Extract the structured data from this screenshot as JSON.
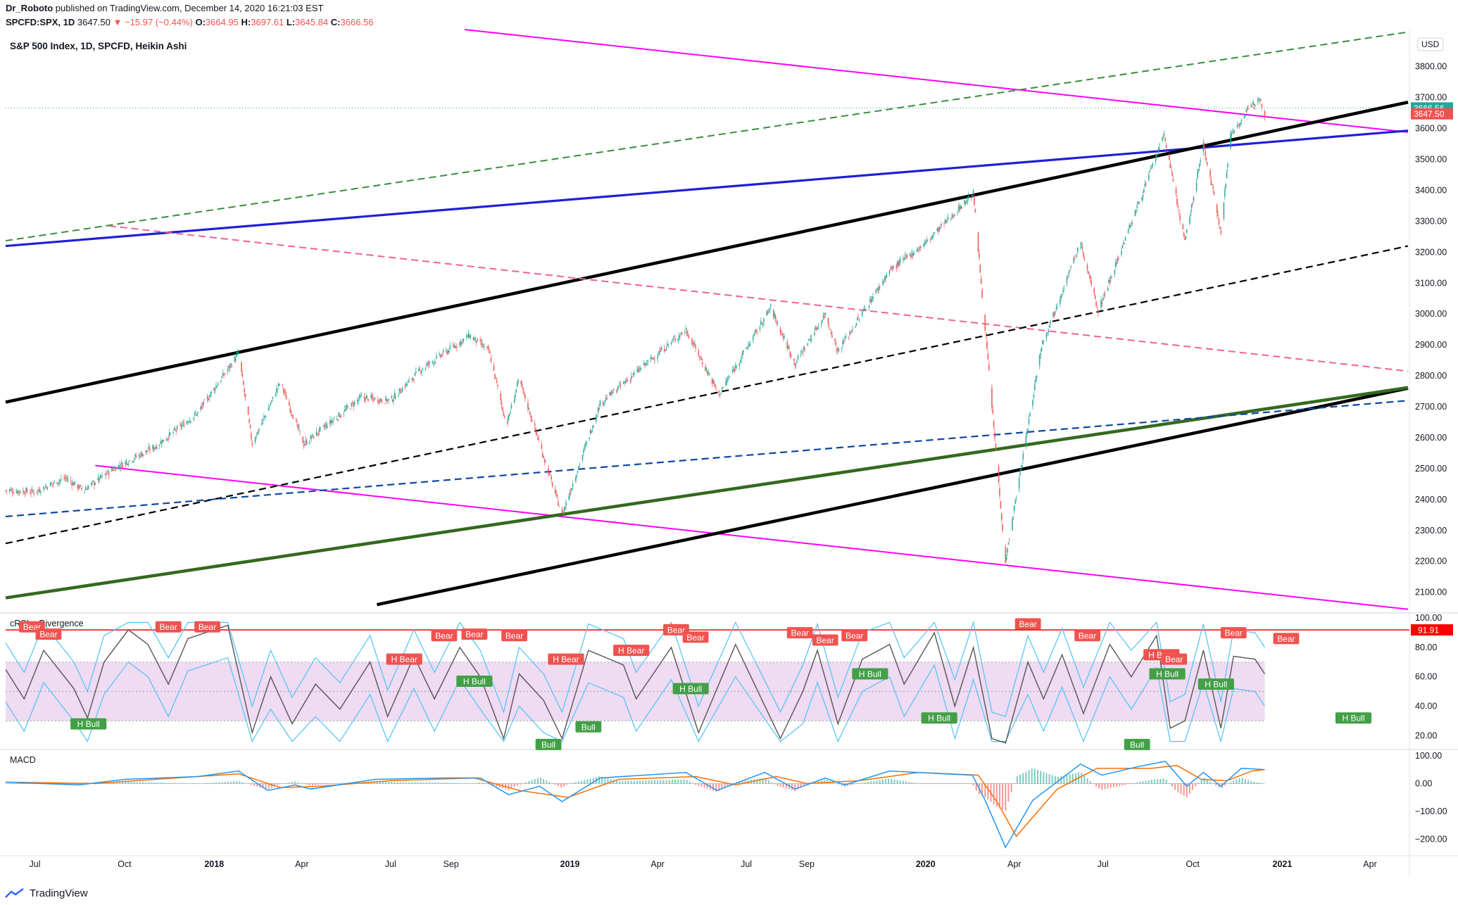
{
  "header": {
    "line1_author": "Dr_Roboto",
    "line1_rest": " published on TradingView.com, December 14, 2020 16:21:03 EST",
    "symbol": "SPCFD:SPX, 1D",
    "last": "3647.50",
    "change": "▼ −15.97 (−0.44%)",
    "o_label": "O:",
    "o": "3664.95",
    "h_label": "H:",
    "h": "3697.61",
    "l_label": "L:",
    "l": "3645.84",
    "c_label": "C:",
    "c": "3666.56"
  },
  "footer": {
    "brand": "TradingView"
  },
  "colors": {
    "up": "#26a69a",
    "down": "#ef5350",
    "magenta": "#ff00ff",
    "blue": "#1f1fd6",
    "black": "#000000",
    "green": "#33691e",
    "dash_green": "#388e3c",
    "dash_pink": "#f06292",
    "dash_navy": "#0d47a1",
    "macd": "#2196f3",
    "signal": "#ff6d00",
    "crsi_line": "#555555",
    "crsi_band": "#4fc3f7",
    "crsi_fill": "#e1bee7"
  },
  "chart_data": [
    {
      "type": "candlestick",
      "title": "S&P 500 Index, 1D, SPCFD, Heikin Ashi",
      "currency": "USD",
      "y_ticks": [
        2100,
        2200,
        2300,
        2400,
        2500,
        2600,
        2700,
        2800,
        2900,
        3000,
        3100,
        3200,
        3300,
        3400,
        3500,
        3600,
        3700,
        3800
      ],
      "y_tick_labels": [
        "2100.00",
        "2200.00",
        "2300.00",
        "2400.00",
        "2500.00",
        "2600.00",
        "2700.00",
        "2800.00",
        "2900.00",
        "3000.00",
        "3100.00",
        "3200.00",
        "3300.00",
        "3400.00",
        "3500.00",
        "3600.00",
        "3700.00",
        "3800.00"
      ],
      "x_tick_labels": [
        "Jul",
        "Oct",
        "2018",
        "Apr",
        "Jul",
        "Sep",
        "2019",
        "Apr",
        "Jul",
        "Sep",
        "2020",
        "Apr",
        "Jul",
        "Oct",
        "2021",
        "Apr"
      ],
      "x_tick_dates": [
        "2017-07-01",
        "2017-10-01",
        "2018-01-01",
        "2018-04-01",
        "2018-07-01",
        "2018-09-01",
        "2019-01-01",
        "2019-04-01",
        "2019-07-01",
        "2019-09-01",
        "2020-01-01",
        "2020-04-01",
        "2020-07-01",
        "2020-10-01",
        "2021-01-01",
        "2021-04-01"
      ],
      "x_range": [
        "2017-06-01",
        "2021-05-10"
      ],
      "y_range": [
        2040,
        3920
      ],
      "price_labels": [
        {
          "text": "3666.56",
          "value": 3666.56,
          "color": "#26a69a"
        },
        {
          "text": "3647.50",
          "value": 3647.5,
          "color": "#ef5350"
        }
      ],
      "price_path": [
        [
          "2017-06-01",
          2430
        ],
        [
          "2017-07-01",
          2425
        ],
        [
          "2017-08-01",
          2470
        ],
        [
          "2017-08-20",
          2430
        ],
        [
          "2017-09-20",
          2500
        ],
        [
          "2017-11-01",
          2570
        ],
        [
          "2017-12-15",
          2680
        ],
        [
          "2018-01-26",
          2872
        ],
        [
          "2018-02-09",
          2580
        ],
        [
          "2018-03-10",
          2780
        ],
        [
          "2018-04-03",
          2580
        ],
        [
          "2018-06-01",
          2730
        ],
        [
          "2018-07-01",
          2720
        ],
        [
          "2018-08-01",
          2820
        ],
        [
          "2018-09-20",
          2930
        ],
        [
          "2018-10-10",
          2880
        ],
        [
          "2018-10-28",
          2640
        ],
        [
          "2018-11-10",
          2790
        ],
        [
          "2018-12-24",
          2350
        ],
        [
          "2019-02-01",
          2710
        ],
        [
          "2019-04-30",
          2950
        ],
        [
          "2019-06-03",
          2740
        ],
        [
          "2019-07-26",
          3020
        ],
        [
          "2019-08-20",
          2840
        ],
        [
          "2019-09-20",
          3000
        ],
        [
          "2019-10-03",
          2880
        ],
        [
          "2019-11-25",
          3140
        ],
        [
          "2020-01-01",
          3230
        ],
        [
          "2020-02-19",
          3390
        ],
        [
          "2020-03-23",
          2200
        ],
        [
          "2020-04-29",
          2900
        ],
        [
          "2020-06-08",
          3230
        ],
        [
          "2020-06-26",
          3010
        ],
        [
          "2020-09-02",
          3580
        ],
        [
          "2020-09-23",
          3230
        ],
        [
          "2020-10-12",
          3550
        ],
        [
          "2020-10-30",
          3270
        ],
        [
          "2020-11-09",
          3580
        ],
        [
          "2020-12-08",
          3705
        ],
        [
          "2020-12-14",
          3650
        ]
      ],
      "trendlines": [
        {
          "style": "magenta",
          "points": [
            [
              "2018-09-15",
              3920
            ],
            [
              "2021-05-10",
              3588
            ]
          ]
        },
        {
          "style": "magenta",
          "points": [
            [
              "2017-09-01",
              2510
            ],
            [
              "2021-05-10",
              2045
            ]
          ]
        },
        {
          "style": "blue",
          "points": [
            [
              "2017-06-01",
              3220
            ],
            [
              "2021-05-10",
              3593
            ]
          ]
        },
        {
          "style": "black",
          "points": [
            [
              "2017-06-01",
              2715
            ],
            [
              "2021-05-10",
              3685
            ]
          ]
        },
        {
          "style": "black",
          "points": [
            [
              "2018-06-17",
              2060
            ],
            [
              "2021-05-10",
              2760
            ]
          ]
        },
        {
          "style": "green",
          "points": [
            [
              "2017-06-01",
              2082
            ],
            [
              "2021-05-10",
              2762
            ]
          ]
        },
        {
          "style": "dash_green",
          "points": [
            [
              "2017-06-01",
              3237
            ],
            [
              "2021-05-10",
              3912
            ]
          ]
        },
        {
          "style": "dash_pink",
          "points": [
            [
              "2017-09-15",
              3285
            ],
            [
              "2021-05-10",
              2815
            ]
          ]
        },
        {
          "style": "dash_black",
          "points": [
            [
              "2017-06-01",
              2258
            ],
            [
              "2021-05-10",
              3220
            ]
          ]
        },
        {
          "style": "dash_navy",
          "points": [
            [
              "2017-06-01",
              2345
            ],
            [
              "2021-05-10",
              2720
            ]
          ]
        }
      ]
    },
    {
      "type": "line",
      "title": "cRSI + Divergence",
      "y_ticks": [
        20,
        40,
        60,
        80,
        100
      ],
      "y_tick_labels": [
        "20.00",
        "40.00",
        "60.00",
        "80.00",
        "100.00"
      ],
      "y_range": [
        12,
        102
      ],
      "ref_line": {
        "value": 91.91,
        "text": "91.91"
      },
      "crsi_path": [
        [
          "2017-06-01",
          65
        ],
        [
          "2017-06-20",
          45
        ],
        [
          "2017-07-10",
          78
        ],
        [
          "2017-08-10",
          52
        ],
        [
          "2017-08-24",
          32
        ],
        [
          "2017-09-10",
          70
        ],
        [
          "2017-10-05",
          92
        ],
        [
          "2017-10-25",
          82
        ],
        [
          "2017-11-15",
          55
        ],
        [
          "2017-12-05",
          86
        ],
        [
          "2018-01-15",
          95
        ],
        [
          "2018-02-09",
          22
        ],
        [
          "2018-02-28",
          60
        ],
        [
          "2018-03-22",
          28
        ],
        [
          "2018-04-15",
          55
        ],
        [
          "2018-05-10",
          38
        ],
        [
          "2018-06-10",
          70
        ],
        [
          "2018-06-28",
          33
        ],
        [
          "2018-07-25",
          74
        ],
        [
          "2018-08-15",
          45
        ],
        [
          "2018-09-10",
          80
        ],
        [
          "2018-10-01",
          60
        ],
        [
          "2018-10-25",
          18
        ],
        [
          "2018-11-10",
          62
        ],
        [
          "2018-12-05",
          44
        ],
        [
          "2018-12-24",
          18
        ],
        [
          "2019-01-20",
          78
        ],
        [
          "2019-02-25",
          68
        ],
        [
          "2019-03-10",
          45
        ],
        [
          "2019-04-15",
          80
        ],
        [
          "2019-05-13",
          22
        ],
        [
          "2019-06-20",
          82
        ],
        [
          "2019-08-05",
          18
        ],
        [
          "2019-08-28",
          50
        ],
        [
          "2019-09-12",
          78
        ],
        [
          "2019-10-03",
          28
        ],
        [
          "2019-10-28",
          72
        ],
        [
          "2019-11-25",
          82
        ],
        [
          "2019-12-10",
          55
        ],
        [
          "2020-01-10",
          90
        ],
        [
          "2020-01-31",
          40
        ],
        [
          "2020-02-19",
          80
        ],
        [
          "2020-03-09",
          18
        ],
        [
          "2020-03-23",
          15
        ],
        [
          "2020-04-15",
          70
        ],
        [
          "2020-05-01",
          45
        ],
        [
          "2020-05-20",
          75
        ],
        [
          "2020-06-11",
          35
        ],
        [
          "2020-07-08",
          82
        ],
        [
          "2020-07-30",
          60
        ],
        [
          "2020-08-25",
          88
        ],
        [
          "2020-09-08",
          25
        ],
        [
          "2020-09-23",
          30
        ],
        [
          "2020-10-12",
          78
        ],
        [
          "2020-10-30",
          25
        ],
        [
          "2020-11-12",
          74
        ],
        [
          "2020-12-04",
          72
        ],
        [
          "2020-12-14",
          62
        ]
      ],
      "labels": [
        {
          "text": "Bear",
          "kind": "bear",
          "date": "2017-06-28",
          "value": 94
        },
        {
          "text": "Bear",
          "kind": "bear",
          "date": "2017-07-15",
          "value": 89
        },
        {
          "text": "Bear",
          "kind": "bear",
          "date": "2017-11-15",
          "value": 94
        },
        {
          "text": "Bear",
          "kind": "bear",
          "date": "2017-12-25",
          "value": 94
        },
        {
          "text": "H Bull",
          "kind": "bull",
          "date": "2017-08-25",
          "value": 28
        },
        {
          "text": "H Bear",
          "kind": "bear",
          "date": "2018-07-15",
          "value": 72
        },
        {
          "text": "Bear",
          "kind": "bear",
          "date": "2018-08-25",
          "value": 88
        },
        {
          "text": "Bear",
          "kind": "bear",
          "date": "2018-09-25",
          "value": 89
        },
        {
          "text": "H Bull",
          "kind": "bull",
          "date": "2018-09-25",
          "value": 57
        },
        {
          "text": "Bear",
          "kind": "bear",
          "date": "2018-11-05",
          "value": 88
        },
        {
          "text": "Bull",
          "kind": "bull",
          "date": "2018-12-10",
          "value": 14
        },
        {
          "text": "H Bear",
          "kind": "bear",
          "date": "2018-12-28",
          "value": 72
        },
        {
          "text": "Bull",
          "kind": "bull",
          "date": "2019-01-20",
          "value": 26
        },
        {
          "text": "H Bear",
          "kind": "bear",
          "date": "2019-03-05",
          "value": 78
        },
        {
          "text": "Bear",
          "kind": "bear",
          "date": "2019-04-20",
          "value": 92
        },
        {
          "text": "Bear",
          "kind": "bear",
          "date": "2019-05-10",
          "value": 87
        },
        {
          "text": "H Bull",
          "kind": "bull",
          "date": "2019-05-05",
          "value": 52
        },
        {
          "text": "Bear",
          "kind": "bear",
          "date": "2019-08-25",
          "value": 90
        },
        {
          "text": "Bear",
          "kind": "bear",
          "date": "2019-09-20",
          "value": 85
        },
        {
          "text": "Bear",
          "kind": "bear",
          "date": "2019-10-20",
          "value": 88
        },
        {
          "text": "H Bull",
          "kind": "bull",
          "date": "2019-11-05",
          "value": 62
        },
        {
          "text": "H Bull",
          "kind": "bull",
          "date": "2020-01-15",
          "value": 32
        },
        {
          "text": "Bear",
          "kind": "bear",
          "date": "2020-04-15",
          "value": 96
        },
        {
          "text": "Bear",
          "kind": "bear",
          "date": "2020-06-15",
          "value": 88
        },
        {
          "text": "Bull",
          "kind": "bull",
          "date": "2020-08-05",
          "value": 14
        },
        {
          "text": "H Bear",
          "kind": "bear",
          "date": "2020-08-30",
          "value": 75
        },
        {
          "text": "H Bull",
          "kind": "bull",
          "date": "2020-09-05",
          "value": 62
        },
        {
          "text": "Bear",
          "kind": "bear",
          "date": "2020-09-12",
          "value": 72
        },
        {
          "text": "H Bull",
          "kind": "bull",
          "date": "2020-10-25",
          "value": 55
        },
        {
          "text": "Bear",
          "kind": "bear",
          "date": "2020-11-12",
          "value": 90
        },
        {
          "text": "Bear",
          "kind": "bear",
          "date": "2021-01-05",
          "value": 86
        },
        {
          "text": "H Bull",
          "kind": "bull",
          "date": "2021-03-15",
          "value": 32
        }
      ]
    },
    {
      "type": "line",
      "title": "MACD",
      "y_ticks": [
        -200,
        -100,
        0,
        100
      ],
      "y_tick_labels": [
        "−200.00",
        "−100.00",
        "0.00",
        "100.00"
      ],
      "y_range": [
        -255,
        115
      ],
      "macd_path": [
        [
          "2017-06-01",
          5
        ],
        [
          "2017-08-15",
          -5
        ],
        [
          "2017-10-01",
          15
        ],
        [
          "2017-12-15",
          25
        ],
        [
          "2018-01-26",
          45
        ],
        [
          "2018-02-25",
          -25
        ],
        [
          "2018-03-25",
          -5
        ],
        [
          "2018-04-10",
          -20
        ],
        [
          "2018-06-15",
          15
        ],
        [
          "2018-08-25",
          20
        ],
        [
          "2018-10-01",
          20
        ],
        [
          "2018-10-30",
          -40
        ],
        [
          "2018-12-01",
          -10
        ],
        [
          "2018-12-24",
          -65
        ],
        [
          "2019-02-01",
          20
        ],
        [
          "2019-04-30",
          40
        ],
        [
          "2019-06-01",
          -25
        ],
        [
          "2019-07-20",
          40
        ],
        [
          "2019-08-20",
          -20
        ],
        [
          "2019-09-20",
          20
        ],
        [
          "2019-10-10",
          -5
        ],
        [
          "2019-11-25",
          45
        ],
        [
          "2020-01-20",
          35
        ],
        [
          "2020-02-18",
          30
        ],
        [
          "2020-03-02",
          -60
        ],
        [
          "2020-03-23",
          -230
        ],
        [
          "2020-04-20",
          -60
        ],
        [
          "2020-06-08",
          70
        ],
        [
          "2020-06-30",
          30
        ],
        [
          "2020-08-05",
          60
        ],
        [
          "2020-09-03",
          80
        ],
        [
          "2020-09-25",
          -10
        ],
        [
          "2020-10-12",
          40
        ],
        [
          "2020-10-30",
          -10
        ],
        [
          "2020-11-20",
          55
        ],
        [
          "2020-12-14",
          50
        ]
      ],
      "signal_path": [
        [
          "2017-06-01",
          5
        ],
        [
          "2017-09-01",
          0
        ],
        [
          "2017-11-01",
          15
        ],
        [
          "2018-01-26",
          35
        ],
        [
          "2018-03-10",
          -15
        ],
        [
          "2018-04-20",
          -10
        ],
        [
          "2018-07-01",
          10
        ],
        [
          "2018-09-25",
          20
        ],
        [
          "2018-11-10",
          -25
        ],
        [
          "2018-12-30",
          -50
        ],
        [
          "2019-02-20",
          15
        ],
        [
          "2019-05-10",
          25
        ],
        [
          "2019-06-20",
          -5
        ],
        [
          "2019-08-01",
          25
        ],
        [
          "2019-09-01",
          0
        ],
        [
          "2019-10-25",
          10
        ],
        [
          "2019-12-25",
          40
        ],
        [
          "2020-02-24",
          30
        ],
        [
          "2020-03-15",
          -70
        ],
        [
          "2020-04-03",
          -190
        ],
        [
          "2020-05-15",
          -20
        ],
        [
          "2020-06-25",
          55
        ],
        [
          "2020-08-20",
          55
        ],
        [
          "2020-09-15",
          65
        ],
        [
          "2020-10-10",
          15
        ],
        [
          "2020-11-05",
          10
        ],
        [
          "2020-12-01",
          45
        ],
        [
          "2020-12-14",
          50
        ]
      ],
      "x_tick_labels": [
        "Jul",
        "Oct",
        "2018",
        "Apr",
        "Jul",
        "Sep",
        "2019",
        "Apr",
        "Jul",
        "Sep",
        "2020",
        "Apr",
        "Jul",
        "Oct",
        "2021",
        "Apr"
      ]
    }
  ]
}
